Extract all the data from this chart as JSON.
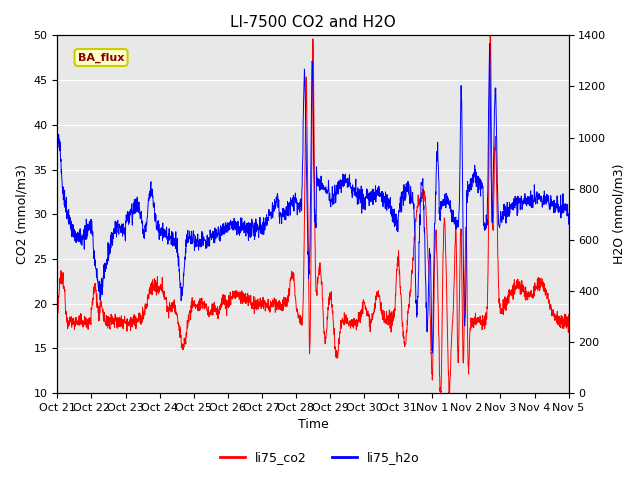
{
  "title": "LI-7500 CO2 and H2O",
  "xlabel": "Time",
  "ylabel_left": "CO2 (mmol/m3)",
  "ylabel_right": "H2O (mmol/m3)",
  "ylim_left": [
    10,
    50
  ],
  "ylim_right": [
    0,
    1400
  ],
  "yticks_left": [
    10,
    15,
    20,
    25,
    30,
    35,
    40,
    45,
    50
  ],
  "yticks_right": [
    0,
    200,
    400,
    600,
    800,
    1000,
    1200,
    1400
  ],
  "xtick_labels": [
    "Oct 21",
    "Oct 22",
    "Oct 23",
    "Oct 24",
    "Oct 25",
    "Oct 26",
    "Oct 27",
    "Oct 28",
    "Oct 29",
    "Oct 30",
    "Oct 31",
    "Nov 1",
    "Nov 2",
    "Nov 3",
    "Nov 4",
    "Nov 5"
  ],
  "legend_labels": [
    "li75_co2",
    "li75_h2o"
  ],
  "legend_colors": [
    "red",
    "blue"
  ],
  "annotation_text": "BA_flux",
  "annotation_bg": "#ffffcc",
  "annotation_border": "#cccc00",
  "annotation_fg": "darkred",
  "background_color": "#e8e8e8",
  "co2_color": "red",
  "h2o_color": "blue",
  "title_fontsize": 11,
  "axis_fontsize": 9,
  "tick_fontsize": 8
}
